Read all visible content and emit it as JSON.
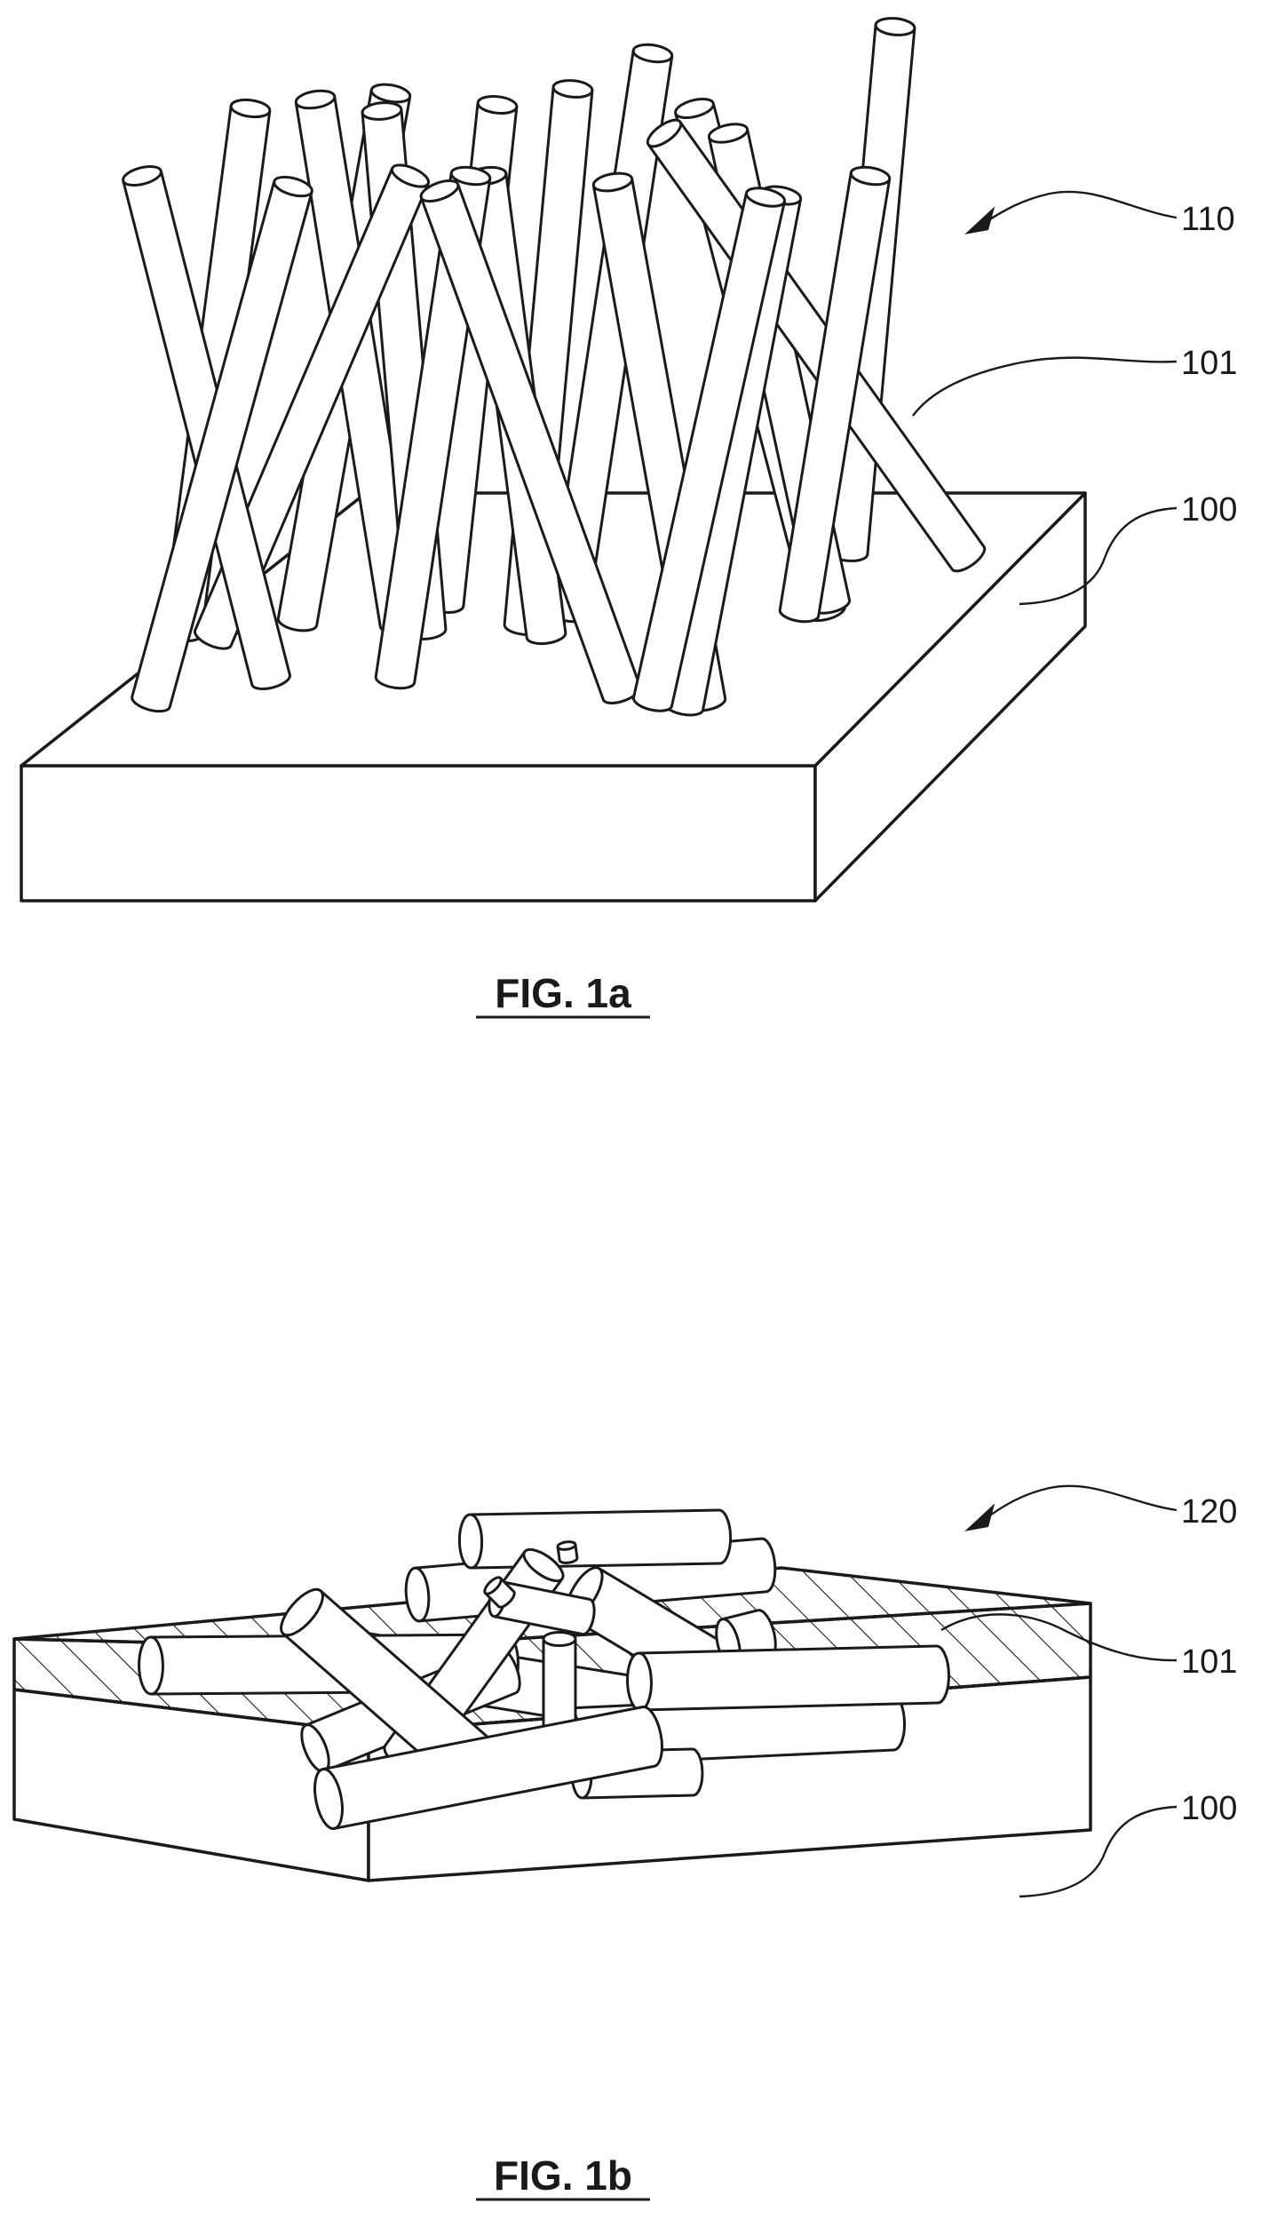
{
  "fig1a": {
    "caption": "FIG. 1a",
    "labels": {
      "array": "110",
      "rod": "101",
      "substrate": "100"
    }
  },
  "fig1b": {
    "caption": "FIG. 1b",
    "labels": {
      "array": "120",
      "rod": "101",
      "substrate": "100"
    }
  },
  "colors": {
    "line": "#1a1a1a",
    "fill": "#ffffff"
  }
}
